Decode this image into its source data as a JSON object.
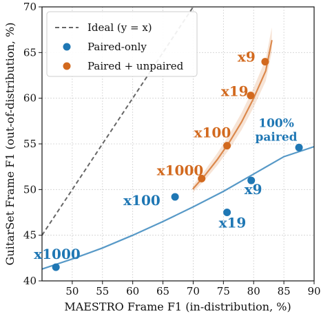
{
  "chart_data": {
    "type": "scatter",
    "xlabel": "MAESTRO Frame F1 (in-distribution, %)",
    "ylabel": "GuitarSet Frame F1 (out-of-distribution, %)",
    "xlim": [
      45,
      90
    ],
    "ylim": [
      40,
      70
    ],
    "xticks": [
      50,
      55,
      60,
      65,
      70,
      75,
      80,
      85,
      90
    ],
    "yticks": [
      40,
      45,
      50,
      55,
      60,
      65,
      70
    ],
    "grid": true,
    "legend_position": "top-left",
    "legend": {
      "ideal": "Ideal (y = x)",
      "paired_only": "Paired-only",
      "paired_unpaired": "Paired + unpaired"
    },
    "colors": {
      "paired_only": "#1f77b4",
      "paired_unpaired": "#d2691e",
      "ideal": "#666666"
    },
    "ideal_line": {
      "x": [
        45,
        70
      ],
      "y": [
        45,
        70
      ]
    },
    "series": [
      {
        "name": "Paired-only",
        "color": "#1f77b4",
        "points": [
          {
            "x": 47.3,
            "y": 41.5,
            "label": "x1000"
          },
          {
            "x": 67.0,
            "y": 49.2,
            "label": "x100"
          },
          {
            "x": 75.6,
            "y": 47.5,
            "label": "x19"
          },
          {
            "x": 79.6,
            "y": 51.0,
            "label": "x9"
          },
          {
            "x": 87.5,
            "y": 54.6,
            "label": "100%\npaired"
          }
        ],
        "fit": [
          [
            45,
            41.3
          ],
          [
            50,
            42.4
          ],
          [
            55,
            43.6
          ],
          [
            60,
            45.0
          ],
          [
            65,
            46.5
          ],
          [
            70,
            48.1
          ],
          [
            75,
            49.8
          ],
          [
            80,
            51.7
          ],
          [
            85,
            53.6
          ],
          [
            90,
            54.7
          ]
        ]
      },
      {
        "name": "Paired + unpaired",
        "color": "#d2691e",
        "points": [
          {
            "x": 71.4,
            "y": 51.2,
            "label": "x1000"
          },
          {
            "x": 75.6,
            "y": 54.8,
            "label": "x100"
          },
          {
            "x": 79.5,
            "y": 60.3,
            "label": "x19"
          },
          {
            "x": 81.9,
            "y": 64.0,
            "label": "x9"
          }
        ],
        "fit": [
          [
            70,
            50.1
          ],
          [
            72,
            51.6
          ],
          [
            74,
            53.3
          ],
          [
            76,
            55.2
          ],
          [
            78,
            57.4
          ],
          [
            80,
            60.0
          ],
          [
            82,
            63.0
          ],
          [
            83,
            66.3
          ]
        ]
      }
    ]
  }
}
